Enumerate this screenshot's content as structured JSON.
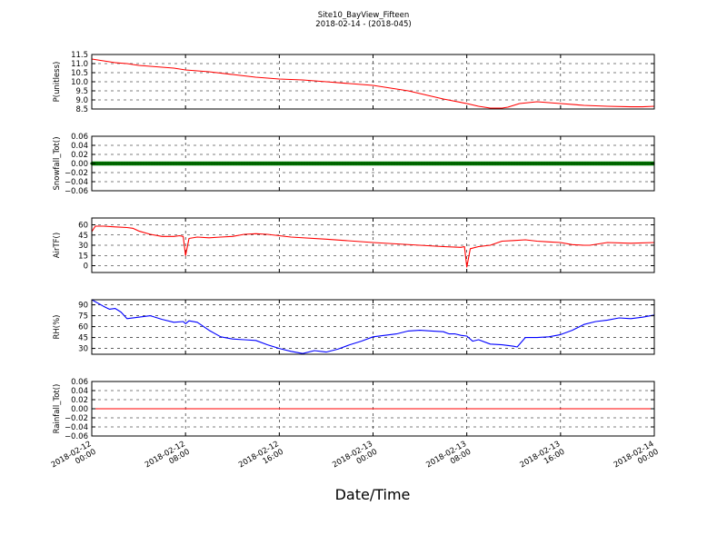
{
  "title_line1": "Site10_BayView_Fifteen",
  "title_line2": "2018-02-14 - (2018-045)",
  "xlabel": "Date/Time",
  "x_ticks": [
    [
      "2018-02-12",
      "00:00"
    ],
    [
      "2018-02-12",
      "08:00"
    ],
    [
      "2018-02-12",
      "16:00"
    ],
    [
      "2018-02-13",
      "00:00"
    ],
    [
      "2018-02-13",
      "08:00"
    ],
    [
      "2018-02-13",
      "16:00"
    ],
    [
      "2018-02-14",
      "00:00"
    ]
  ],
  "chart_data": [
    {
      "type": "line",
      "ylabel": "P(unitless)",
      "ylim": [
        8.5,
        11.5
      ],
      "yticks": [
        "11.5",
        "11.0",
        "10.5",
        "10.0",
        "9.5",
        "9.0",
        "8.5"
      ],
      "grid": true,
      "xlim_hours": [
        0,
        48
      ],
      "series": [
        {
          "color": "#ff0000",
          "x": [
            0,
            1,
            2,
            3,
            4,
            5,
            6,
            7,
            8,
            10,
            12,
            14,
            16,
            18,
            20,
            22,
            24,
            25,
            26,
            27,
            28,
            29,
            30,
            32,
            33,
            34,
            35,
            35.5,
            36.5,
            38,
            40,
            42,
            44,
            46,
            47,
            48
          ],
          "y": [
            11.25,
            11.15,
            11.05,
            11.0,
            10.9,
            10.85,
            10.8,
            10.75,
            10.65,
            10.55,
            10.4,
            10.25,
            10.15,
            10.1,
            10.0,
            9.9,
            9.8,
            9.7,
            9.6,
            9.5,
            9.35,
            9.2,
            9.05,
            8.8,
            8.65,
            8.55,
            8.55,
            8.6,
            8.8,
            8.9,
            8.8,
            8.7,
            8.65,
            8.62,
            8.62,
            8.65
          ]
        }
      ]
    },
    {
      "type": "scatter",
      "ylabel": "Snowfall_Tot()",
      "ylim": [
        -0.06,
        0.06
      ],
      "yticks": [
        "0.06",
        "0.04",
        "0.02",
        "0.00",
        "−0.02",
        "−0.04",
        "−0.06"
      ],
      "grid": true,
      "xlim_hours": [
        0,
        48
      ],
      "series": [
        {
          "color": "#008000",
          "constant": 0.0,
          "x_range": [
            0,
            48
          ]
        }
      ]
    },
    {
      "type": "line",
      "ylabel": "AirTF()",
      "ylim": [
        -10,
        70
      ],
      "yticks": [
        "60",
        "45",
        "30",
        "15",
        "0"
      ],
      "grid": true,
      "xlim_hours": [
        0,
        48
      ],
      "series": [
        {
          "color": "#ff0000",
          "x": [
            0,
            0.3,
            1,
            2,
            3,
            3.5,
            4,
            5,
            6,
            7,
            7.5,
            7.8,
            8,
            8.3,
            9,
            10,
            11,
            12,
            13,
            14,
            15,
            17,
            20,
            24,
            28,
            30,
            31.5,
            31.8,
            32,
            32.3,
            33,
            34,
            35,
            36,
            37,
            38,
            39,
            40,
            41,
            42,
            42.5,
            44,
            46,
            48
          ],
          "y": [
            50,
            58,
            58,
            57,
            56,
            55,
            51,
            46,
            43,
            43,
            44,
            43,
            15,
            40,
            42,
            41,
            42,
            43,
            46,
            47,
            46,
            42,
            39,
            34,
            30,
            28,
            27,
            28,
            -2,
            25,
            28,
            30,
            36,
            37,
            38,
            36,
            35,
            34,
            31,
            30,
            30,
            34,
            33,
            34
          ]
        }
      ]
    },
    {
      "type": "line",
      "ylabel": "RH(%)",
      "ylim": [
        22,
        97
      ],
      "yticks": [
        "90",
        "75",
        "60",
        "45",
        "30"
      ],
      "grid": true,
      "xlim_hours": [
        0,
        48
      ],
      "series": [
        {
          "color": "#0000ff",
          "x": [
            0,
            1,
            1.5,
            2,
            2.5,
            3,
            4,
            5,
            6,
            7,
            7.8,
            8,
            8.3,
            9,
            10,
            11,
            12,
            13,
            14,
            15,
            16,
            17,
            18,
            19,
            20,
            21,
            22,
            23,
            24,
            26,
            27,
            28,
            29,
            30,
            30.5,
            31,
            31.5,
            32,
            32.5,
            33,
            34,
            35,
            36,
            36.3,
            37,
            38,
            39,
            40,
            41,
            42,
            43,
            44,
            45,
            46,
            47,
            48
          ],
          "y": [
            97,
            88,
            84,
            85,
            80,
            71,
            73,
            75,
            70,
            66,
            67,
            64,
            68,
            66,
            55,
            46,
            43,
            42,
            41,
            35,
            30,
            26,
            23,
            27,
            25,
            29,
            35,
            40,
            46,
            50,
            54,
            55,
            54,
            53,
            50,
            50,
            48,
            47,
            40,
            42,
            36,
            35,
            33,
            32,
            45,
            45,
            46,
            49,
            55,
            63,
            67,
            69,
            72,
            71,
            73,
            76
          ]
        }
      ]
    },
    {
      "type": "line",
      "ylabel": "Rainfall_Tot()",
      "ylim": [
        -0.06,
        0.06
      ],
      "yticks": [
        "0.06",
        "0.04",
        "0.02",
        "0.00",
        "−0.02",
        "−0.04",
        "−0.06"
      ],
      "grid": true,
      "xlim_hours": [
        0,
        48
      ],
      "series": [
        {
          "color": "#ff0000",
          "x": [
            0,
            48
          ],
          "y": [
            0,
            0
          ]
        }
      ]
    }
  ]
}
